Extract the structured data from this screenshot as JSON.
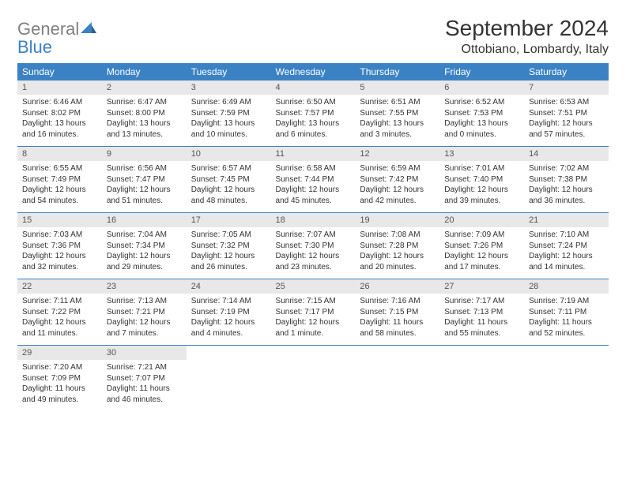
{
  "logo": {
    "text_gray": "General",
    "text_blue": "Blue"
  },
  "title": "September 2024",
  "location": "Ottobiano, Lombardy, Italy",
  "colors": {
    "header_bg": "#3b82c4",
    "daynum_bg": "#e8e8e8",
    "text": "#333333",
    "logo_gray": "#808080",
    "logo_blue": "#3b82c4"
  },
  "day_headers": [
    "Sunday",
    "Monday",
    "Tuesday",
    "Wednesday",
    "Thursday",
    "Friday",
    "Saturday"
  ],
  "weeks": [
    [
      {
        "n": "1",
        "sr": "Sunrise: 6:46 AM",
        "ss": "Sunset: 8:02 PM",
        "d1": "Daylight: 13 hours",
        "d2": "and 16 minutes."
      },
      {
        "n": "2",
        "sr": "Sunrise: 6:47 AM",
        "ss": "Sunset: 8:00 PM",
        "d1": "Daylight: 13 hours",
        "d2": "and 13 minutes."
      },
      {
        "n": "3",
        "sr": "Sunrise: 6:49 AM",
        "ss": "Sunset: 7:59 PM",
        "d1": "Daylight: 13 hours",
        "d2": "and 10 minutes."
      },
      {
        "n": "4",
        "sr": "Sunrise: 6:50 AM",
        "ss": "Sunset: 7:57 PM",
        "d1": "Daylight: 13 hours",
        "d2": "and 6 minutes."
      },
      {
        "n": "5",
        "sr": "Sunrise: 6:51 AM",
        "ss": "Sunset: 7:55 PM",
        "d1": "Daylight: 13 hours",
        "d2": "and 3 minutes."
      },
      {
        "n": "6",
        "sr": "Sunrise: 6:52 AM",
        "ss": "Sunset: 7:53 PM",
        "d1": "Daylight: 13 hours",
        "d2": "and 0 minutes."
      },
      {
        "n": "7",
        "sr": "Sunrise: 6:53 AM",
        "ss": "Sunset: 7:51 PM",
        "d1": "Daylight: 12 hours",
        "d2": "and 57 minutes."
      }
    ],
    [
      {
        "n": "8",
        "sr": "Sunrise: 6:55 AM",
        "ss": "Sunset: 7:49 PM",
        "d1": "Daylight: 12 hours",
        "d2": "and 54 minutes."
      },
      {
        "n": "9",
        "sr": "Sunrise: 6:56 AM",
        "ss": "Sunset: 7:47 PM",
        "d1": "Daylight: 12 hours",
        "d2": "and 51 minutes."
      },
      {
        "n": "10",
        "sr": "Sunrise: 6:57 AM",
        "ss": "Sunset: 7:45 PM",
        "d1": "Daylight: 12 hours",
        "d2": "and 48 minutes."
      },
      {
        "n": "11",
        "sr": "Sunrise: 6:58 AM",
        "ss": "Sunset: 7:44 PM",
        "d1": "Daylight: 12 hours",
        "d2": "and 45 minutes."
      },
      {
        "n": "12",
        "sr": "Sunrise: 6:59 AM",
        "ss": "Sunset: 7:42 PM",
        "d1": "Daylight: 12 hours",
        "d2": "and 42 minutes."
      },
      {
        "n": "13",
        "sr": "Sunrise: 7:01 AM",
        "ss": "Sunset: 7:40 PM",
        "d1": "Daylight: 12 hours",
        "d2": "and 39 minutes."
      },
      {
        "n": "14",
        "sr": "Sunrise: 7:02 AM",
        "ss": "Sunset: 7:38 PM",
        "d1": "Daylight: 12 hours",
        "d2": "and 36 minutes."
      }
    ],
    [
      {
        "n": "15",
        "sr": "Sunrise: 7:03 AM",
        "ss": "Sunset: 7:36 PM",
        "d1": "Daylight: 12 hours",
        "d2": "and 32 minutes."
      },
      {
        "n": "16",
        "sr": "Sunrise: 7:04 AM",
        "ss": "Sunset: 7:34 PM",
        "d1": "Daylight: 12 hours",
        "d2": "and 29 minutes."
      },
      {
        "n": "17",
        "sr": "Sunrise: 7:05 AM",
        "ss": "Sunset: 7:32 PM",
        "d1": "Daylight: 12 hours",
        "d2": "and 26 minutes."
      },
      {
        "n": "18",
        "sr": "Sunrise: 7:07 AM",
        "ss": "Sunset: 7:30 PM",
        "d1": "Daylight: 12 hours",
        "d2": "and 23 minutes."
      },
      {
        "n": "19",
        "sr": "Sunrise: 7:08 AM",
        "ss": "Sunset: 7:28 PM",
        "d1": "Daylight: 12 hours",
        "d2": "and 20 minutes."
      },
      {
        "n": "20",
        "sr": "Sunrise: 7:09 AM",
        "ss": "Sunset: 7:26 PM",
        "d1": "Daylight: 12 hours",
        "d2": "and 17 minutes."
      },
      {
        "n": "21",
        "sr": "Sunrise: 7:10 AM",
        "ss": "Sunset: 7:24 PM",
        "d1": "Daylight: 12 hours",
        "d2": "and 14 minutes."
      }
    ],
    [
      {
        "n": "22",
        "sr": "Sunrise: 7:11 AM",
        "ss": "Sunset: 7:22 PM",
        "d1": "Daylight: 12 hours",
        "d2": "and 11 minutes."
      },
      {
        "n": "23",
        "sr": "Sunrise: 7:13 AM",
        "ss": "Sunset: 7:21 PM",
        "d1": "Daylight: 12 hours",
        "d2": "and 7 minutes."
      },
      {
        "n": "24",
        "sr": "Sunrise: 7:14 AM",
        "ss": "Sunset: 7:19 PM",
        "d1": "Daylight: 12 hours",
        "d2": "and 4 minutes."
      },
      {
        "n": "25",
        "sr": "Sunrise: 7:15 AM",
        "ss": "Sunset: 7:17 PM",
        "d1": "Daylight: 12 hours",
        "d2": "and 1 minute."
      },
      {
        "n": "26",
        "sr": "Sunrise: 7:16 AM",
        "ss": "Sunset: 7:15 PM",
        "d1": "Daylight: 11 hours",
        "d2": "and 58 minutes."
      },
      {
        "n": "27",
        "sr": "Sunrise: 7:17 AM",
        "ss": "Sunset: 7:13 PM",
        "d1": "Daylight: 11 hours",
        "d2": "and 55 minutes."
      },
      {
        "n": "28",
        "sr": "Sunrise: 7:19 AM",
        "ss": "Sunset: 7:11 PM",
        "d1": "Daylight: 11 hours",
        "d2": "and 52 minutes."
      }
    ],
    [
      {
        "n": "29",
        "sr": "Sunrise: 7:20 AM",
        "ss": "Sunset: 7:09 PM",
        "d1": "Daylight: 11 hours",
        "d2": "and 49 minutes."
      },
      {
        "n": "30",
        "sr": "Sunrise: 7:21 AM",
        "ss": "Sunset: 7:07 PM",
        "d1": "Daylight: 11 hours",
        "d2": "and 46 minutes."
      },
      null,
      null,
      null,
      null,
      null
    ]
  ]
}
